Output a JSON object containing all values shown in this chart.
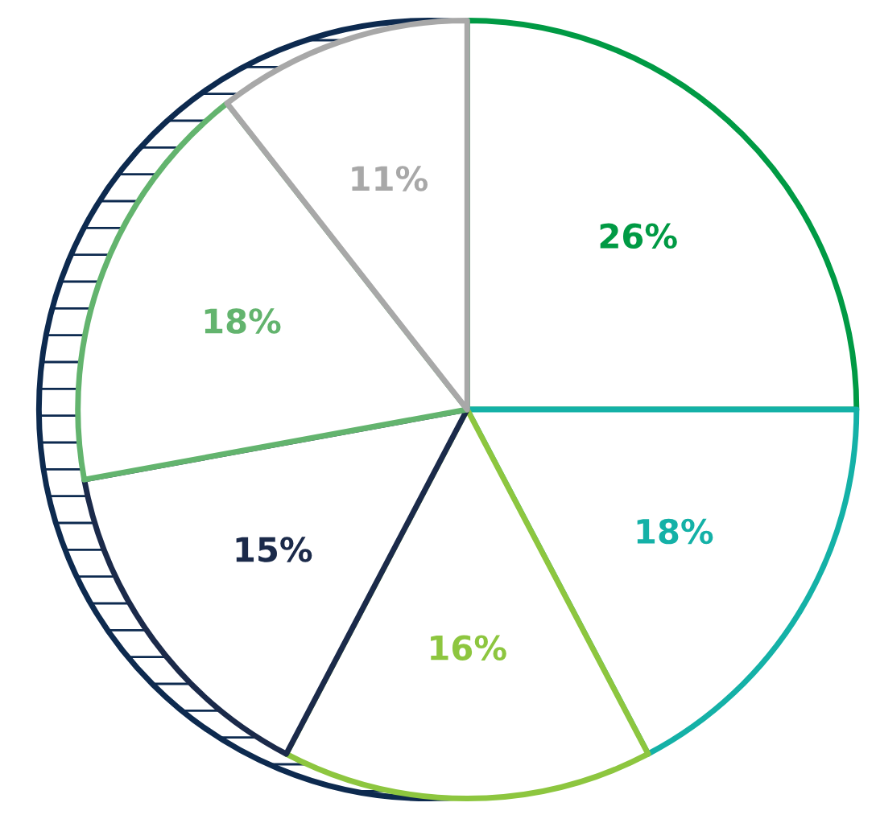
{
  "chart_data": {
    "type": "pie",
    "categories": [
      null,
      null,
      null,
      null,
      null,
      null
    ],
    "values": [
      26,
      18,
      16,
      15,
      18,
      11
    ],
    "colors": [
      "#009a44",
      "#14b1a7",
      "#8dc63f",
      "#1b2a4a",
      "#63b46e",
      "#a8a8a8"
    ],
    "value_labels": [
      "26%",
      "18%",
      "16%",
      "15%",
      "18%",
      "11%"
    ],
    "legend": false
  }
}
